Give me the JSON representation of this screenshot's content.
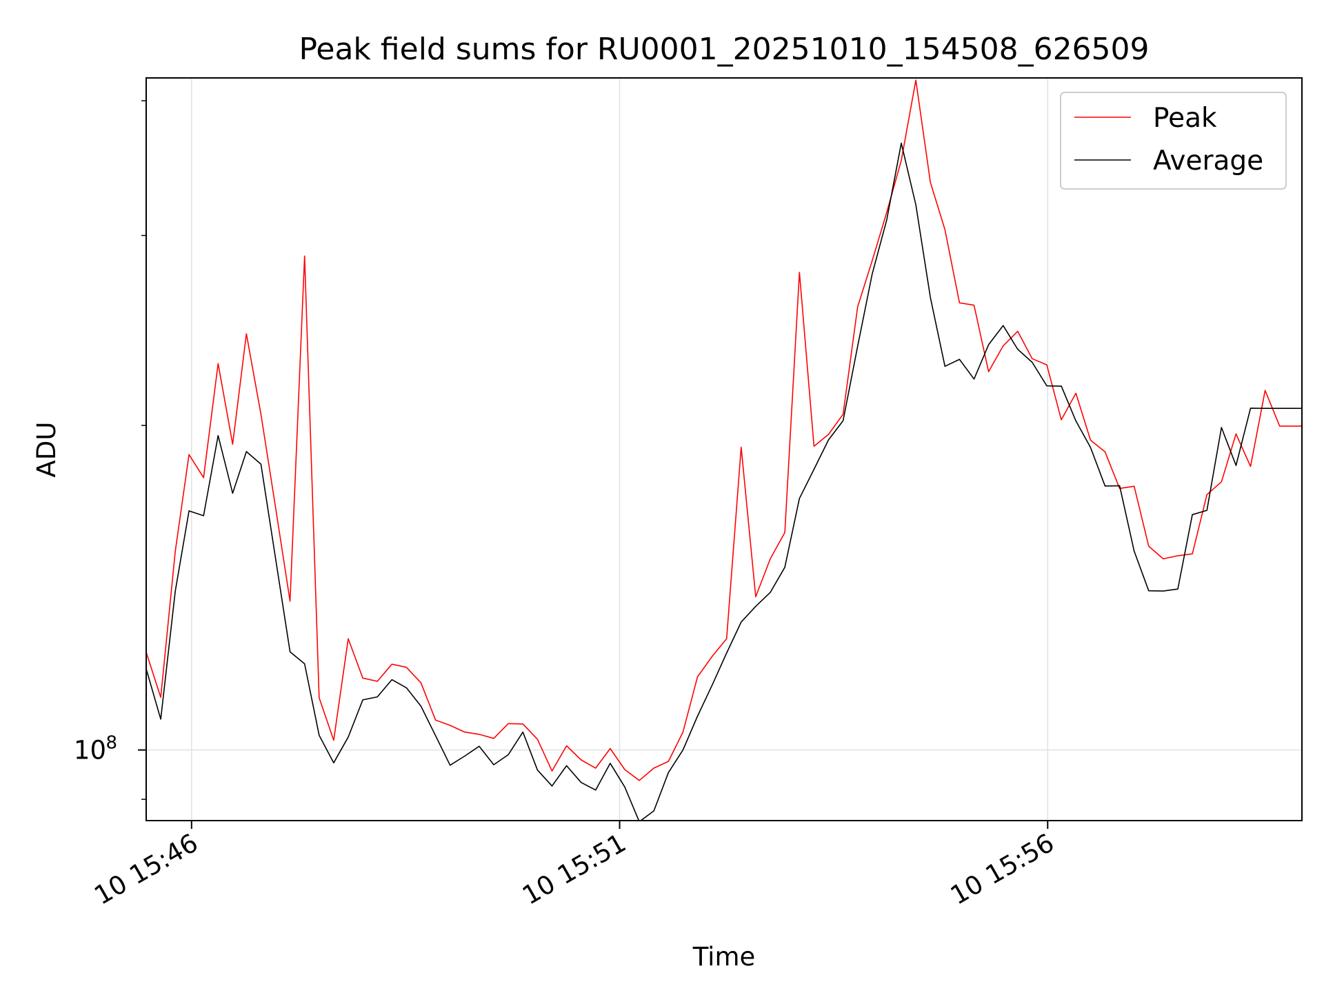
{
  "chart_data": {
    "type": "line",
    "title": "Peak field sums for RU0001_20251010_154508_626509",
    "xlabel": "Time",
    "ylabel": "ADU",
    "yscale": "log",
    "ylim": [
      86000000,
      420000000
    ],
    "xlim_minutes": [
      -0.53,
      12.97
    ],
    "x_tick_labels": [
      "10 15:46",
      "10 15:51",
      "10 15:56"
    ],
    "x_tick_minutes": [
      0,
      5,
      10
    ],
    "y_tick_labels": [
      {
        "base": "10",
        "exp": "8",
        "value": 100000000
      }
    ],
    "grid": true,
    "legend_position": "top-right",
    "x_minutes": [
      -0.53,
      -0.36,
      -0.19,
      -0.03,
      0.14,
      0.31,
      0.48,
      0.64,
      0.81,
      0.98,
      1.15,
      1.32,
      1.49,
      1.66,
      1.83,
      2.0,
      2.17,
      2.34,
      2.51,
      2.68,
      2.85,
      3.02,
      3.19,
      3.36,
      3.53,
      3.7,
      3.87,
      4.04,
      4.21,
      4.38,
      4.55,
      4.72,
      4.89,
      5.06,
      5.23,
      5.4,
      5.57,
      5.74,
      5.91,
      6.08,
      6.25,
      6.42,
      6.59,
      6.76,
      6.93,
      7.1,
      7.27,
      7.44,
      7.61,
      7.78,
      7.95,
      8.12,
      8.29,
      8.46,
      8.63,
      8.8,
      8.97,
      9.14,
      9.31,
      9.48,
      9.65,
      9.82,
      9.99,
      10.16,
      10.33,
      10.5,
      10.67,
      10.84,
      11.01,
      11.18,
      11.35,
      11.52,
      11.69,
      11.86,
      12.03,
      12.2,
      12.37,
      12.54,
      12.71,
      12.97
    ],
    "series": [
      {
        "name": "Peak",
        "color": "#ff0000",
        "values": [
          123200000,
          111900000,
          152900000,
          187900000,
          178900000,
          228200000,
          192100000,
          243200000,
          204800000,
          168000000,
          137400000,
          287100000,
          111800000,
          102100000,
          126800000,
          116600000,
          115800000,
          120100000,
          119300000,
          115400000,
          106600000,
          105400000,
          103900000,
          103400000,
          102500000,
          105800000,
          105700000,
          102300000,
          95600000,
          100900000,
          97900000,
          96200000,
          100300000,
          95900000,
          93700000,
          96200000,
          97600000,
          103900000,
          116900000,
          122100000,
          126800000,
          190900000,
          138700000,
          150400000,
          159100000,
          277300000,
          191300000,
          196200000,
          204800000,
          257600000,
          284300000,
          315200000,
          352200000,
          418000000,
          336000000,
          303800000,
          259800000,
          258500000,
          224300000,
          237000000,
          244500000,
          230600000,
          227600000,
          202400000,
          214200000,
          193800000,
          189000000,
          174800000,
          175600000,
          154500000,
          150400000,
          151400000,
          152000000,
          172500000,
          177300000,
          196400000,
          183200000,
          215500000,
          199700000,
          199700000
        ]
      },
      {
        "name": "Average",
        "color": "#000000",
        "values": [
          118900000,
          106800000,
          140400000,
          166600000,
          164900000,
          195700000,
          173000000,
          189100000,
          184100000,
          150700000,
          123300000,
          120200000,
          103200000,
          97300000,
          102800000,
          111300000,
          112000000,
          116200000,
          114200000,
          109800000,
          103100000,
          96800000,
          98700000,
          100800000,
          96900000,
          99000000,
          103900000,
          95800000,
          92600000,
          96700000,
          93300000,
          91800000,
          97200000,
          92400000,
          85800000,
          87800000,
          95300000,
          100000000,
          107500000,
          114800000,
          123000000,
          131400000,
          135900000,
          140000000,
          147700000,
          171100000,
          182100000,
          193900000,
          202000000,
          236800000,
          276300000,
          310200000,
          365400000,
          320300000,
          262800000,
          226900000,
          230300000,
          220800000,
          237600000,
          247500000,
          235300000,
          228800000,
          217600000,
          217500000,
          201900000,
          190800000,
          175700000,
          175800000,
          152900000,
          140500000,
          140400000,
          141000000,
          165300000,
          166800000,
          199100000,
          183600000,
          207500000,
          207400000,
          207400000,
          207400000
        ]
      }
    ]
  }
}
